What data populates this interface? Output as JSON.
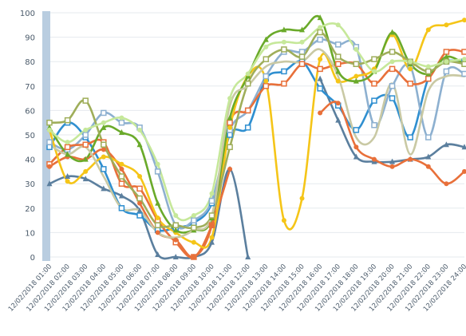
{
  "chart_data": {
    "type": "line",
    "title": "",
    "xlabel": "",
    "ylabel": "",
    "ylim": [
      0,
      100
    ],
    "y_ticks": [
      0,
      10,
      20,
      30,
      40,
      50,
      60,
      70,
      80,
      90,
      100
    ],
    "grid": "horizontal",
    "legend": "none",
    "categories": [
      "12/02/2018 01:00",
      "12/02/2018 02:00",
      "12/02/2018 03:00",
      "12/02/2018 04:00",
      "12/02/2018 05:00",
      "12/02/2018 06:00",
      "12/02/2018 07:00",
      "12/02/2018 08:00",
      "12/02/2018 09:00",
      "12/02/2018 10:00",
      "12/02/2018 11:00",
      "12/02/2018 12:00",
      "12/02/2018 13:00",
      "12/02/2018 14:00",
      "12/02/2018 15:00",
      "12/02/2018 16:00",
      "12/02/2018 17:00",
      "12/02/2018 18:00",
      "12/02/2018 19:00",
      "12/02/2018 20:00",
      "12/02/2018 21:00",
      "12/02/2018 22:00",
      "12/02/2018 23:00",
      "12/02/2018 24:00"
    ],
    "series": [
      {
        "color": "#5b7f9e",
        "marker": "triangle",
        "values": [
          30,
          33,
          32,
          28,
          25,
          19,
          1,
          0,
          0,
          6,
          36,
          0,
          null,
          null,
          null,
          null,
          null,
          null,
          null,
          null,
          null,
          null,
          null,
          null
        ]
      },
      {
        "color": "#5b7f9e",
        "marker": "triangle",
        "values": [
          null,
          null,
          null,
          null,
          null,
          null,
          null,
          null,
          null,
          null,
          null,
          null,
          null,
          null,
          null,
          73,
          56,
          41,
          39,
          39,
          40,
          41,
          46,
          45
        ]
      },
      {
        "color": "#2f8fd0",
        "marker": "square",
        "values": [
          45,
          55,
          49,
          36,
          20,
          17,
          11,
          12,
          14,
          22,
          50,
          53,
          73,
          76,
          80,
          69,
          62,
          52,
          64,
          65,
          49,
          73,
          80,
          80
        ]
      },
      {
        "color": "#8db0d0",
        "marker": "square",
        "values": [
          47,
          44,
          50,
          59,
          55,
          53,
          35,
          13,
          15,
          23,
          52,
          60,
          74,
          84,
          84,
          89,
          87,
          86,
          54,
          70,
          78,
          49,
          76,
          75
        ]
      },
      {
        "color": "#e8703a",
        "marker": "square",
        "values": [
          38,
          45,
          46,
          47,
          30,
          28,
          15,
          6,
          0,
          13,
          55,
          60,
          70,
          71,
          79,
          77,
          79,
          79,
          71,
          77,
          71,
          73,
          84,
          84
        ]
      },
      {
        "color": "#e8703a",
        "marker": "circle",
        "values": [
          37,
          41,
          40,
          44,
          36,
          22,
          10,
          7,
          0,
          13,
          36,
          null,
          null,
          null,
          null,
          59,
          63,
          45,
          40,
          37,
          40,
          37,
          30,
          35
        ]
      },
      {
        "color": "#f5c518",
        "marker": "circle",
        "values": [
          52,
          31,
          35,
          41,
          38,
          33,
          16,
          10,
          6,
          8,
          53,
          74,
          72,
          15,
          24,
          81,
          72,
          74,
          77,
          91,
          77,
          93,
          95,
          97
        ]
      },
      {
        "color": "#6aaa2a",
        "marker": "triangle",
        "values": [
          53,
          42,
          40,
          53,
          51,
          46,
          22,
          11,
          11,
          16,
          57,
          74,
          89,
          93,
          93,
          98,
          76,
          72,
          76,
          92,
          79,
          75,
          82,
          79
        ]
      },
      {
        "color": "#9fae5a",
        "marker": "square",
        "values": [
          55,
          56,
          64,
          46,
          33,
          24,
          13,
          13,
          12,
          17,
          45,
          71,
          81,
          85,
          82,
          92,
          82,
          79,
          81,
          84,
          80,
          76,
          80,
          79
        ]
      },
      {
        "color": "#c9c9a4",
        "marker": "none",
        "values": [
          46,
          42,
          45,
          33,
          20,
          19,
          10,
          8,
          11,
          17,
          62,
          70,
          78,
          80,
          80,
          85,
          74,
          49,
          49,
          71,
          42,
          68,
          74,
          74
        ]
      },
      {
        "color": "#c6e89a",
        "marker": "circle",
        "values": [
          52,
          47,
          52,
          55,
          57,
          52,
          38,
          17,
          17,
          26,
          65,
          75,
          86,
          88,
          88,
          94,
          95,
          85,
          76,
          80,
          80,
          78,
          80,
          81
        ]
      }
    ]
  }
}
